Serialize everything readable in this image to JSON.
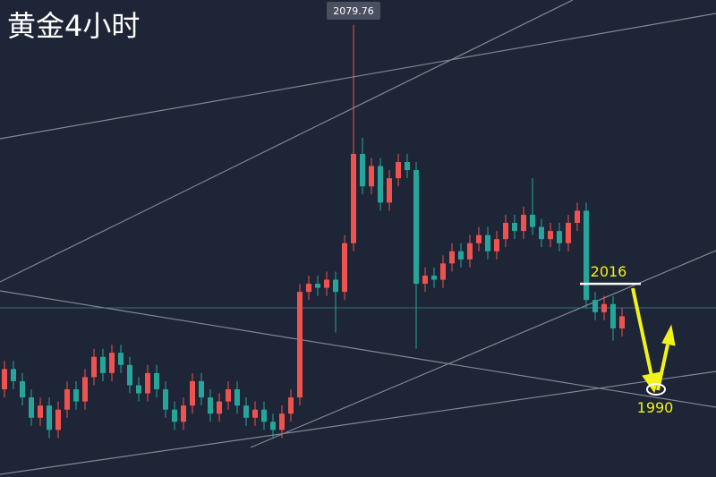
{
  "chart_data": {
    "type": "candlestick",
    "title": "黄金4小时",
    "ylim": [
      1968.4,
      2085.9
    ],
    "up_color": "#ef5350",
    "down_color": "#26a69a",
    "open": [
      1990,
      1995,
      1992,
      1988,
      1983,
      1986,
      1980,
      1985,
      1990,
      1987,
      1993,
      1998,
      1994,
      1999,
      1996,
      1991,
      1989,
      1994,
      1990,
      1985,
      1982,
      1986,
      1992,
      1988,
      1984,
      1987,
      1990,
      1986,
      1983,
      1985,
      1982,
      1980,
      1984,
      1988,
      2014,
      2016,
      2015,
      2017,
      2014,
      2026,
      2048,
      2040,
      2045,
      2036,
      2042,
      2046,
      2044,
      2016,
      2018,
      2017,
      2021,
      2024,
      2022,
      2026,
      2028,
      2024,
      2027,
      2031,
      2029,
      2033,
      2030,
      2027,
      2029,
      2026,
      2031,
      2034,
      2012,
      2009,
      2011,
      2005
    ],
    "high": [
      1997,
      1997,
      1994,
      1990,
      1988,
      1988,
      1987,
      1992,
      1992,
      1995,
      2000,
      2000,
      2001,
      2001,
      1998,
      1993,
      1996,
      1996,
      1992,
      1987,
      1988,
      1994,
      1994,
      1990,
      1989,
      1992,
      1992,
      1988,
      1987,
      1987,
      1984,
      1986,
      1990,
      2016,
      2018,
      2018,
      2019,
      2019,
      2028,
      2079.76,
      2052,
      2047,
      2047,
      2044,
      2048,
      2048,
      2046,
      2020,
      2020,
      2023,
      2026,
      2026,
      2028,
      2030,
      2030,
      2029,
      2033,
      2033,
      2035,
      2042,
      2032,
      2031,
      2031,
      2033,
      2036,
      2036,
      2014,
      2013,
      2013,
      2010
    ],
    "low": [
      1988,
      1990,
      1986,
      1981,
      1981,
      1978,
      1978,
      1983,
      1985,
      1985,
      1991,
      1992,
      1992,
      1994,
      1989,
      1987,
      1987,
      1988,
      1983,
      1980,
      1980,
      1984,
      1986,
      1982,
      1982,
      1985,
      1984,
      1981,
      1981,
      1980,
      1978,
      1978,
      1982,
      1986,
      2012,
      2013,
      2013,
      2004,
      2012,
      2024,
      2038,
      2038,
      2034,
      2034,
      2040,
      2042,
      2000,
      2014,
      2015,
      2015,
      2019,
      2020,
      2020,
      2024,
      2022,
      2022,
      2025,
      2027,
      2027,
      2028,
      2025,
      2025,
      2024,
      2024,
      2029,
      2010,
      2007,
      2007,
      2002,
      2003
    ],
    "close": [
      1995,
      1992,
      1988,
      1983,
      1986,
      1980,
      1985,
      1990,
      1987,
      1993,
      1998,
      1994,
      1999,
      1996,
      1991,
      1989,
      1994,
      1990,
      1985,
      1982,
      1986,
      1992,
      1988,
      1984,
      1987,
      1990,
      1986,
      1983,
      1985,
      1982,
      1980,
      1984,
      1988,
      2014,
      2016,
      2015,
      2017,
      2014,
      2026,
      2048,
      2040,
      2045,
      2036,
      2042,
      2046,
      2044,
      2016,
      2018,
      2017,
      2021,
      2024,
      2022,
      2026,
      2028,
      2024,
      2027,
      2031,
      2029,
      2033,
      2030,
      2027,
      2029,
      2026,
      2031,
      2034,
      2012,
      2009,
      2011,
      2005,
      2008
    ],
    "levels": [
      2016,
      1990
    ]
  }
}
